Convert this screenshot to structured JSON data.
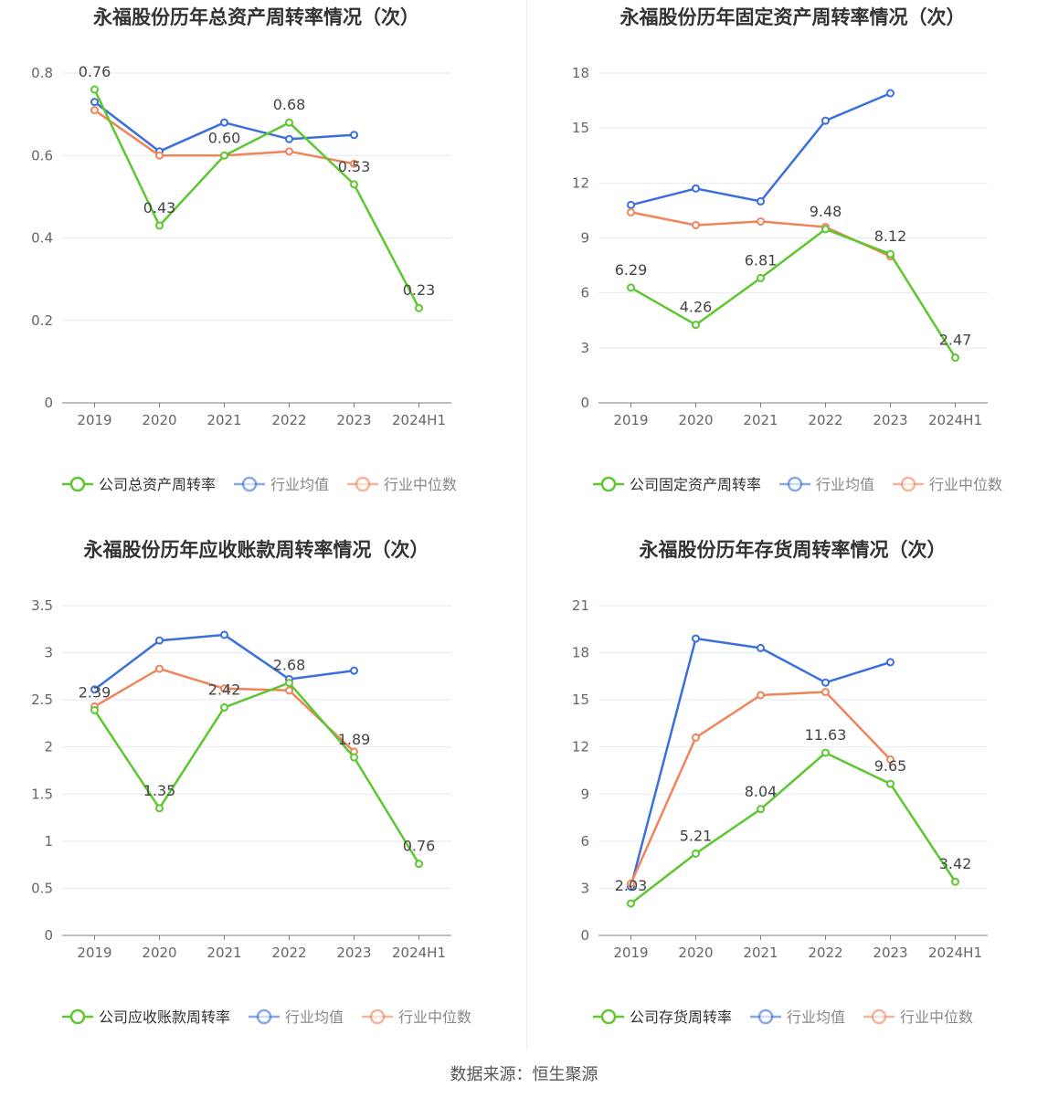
{
  "source_text": "数据来源：恒生聚源",
  "colors": {
    "company": "#5cc72f",
    "avg": "#3b6fdc",
    "median": "#f0845b"
  },
  "chart_data": [
    {
      "type": "line",
      "title": "永福股份历年总资产周转率情况（次）",
      "categories": [
        "2019",
        "2020",
        "2021",
        "2022",
        "2023",
        "2024H1"
      ],
      "ylim": [
        0,
        0.8
      ],
      "yticks": [
        "0",
        "0.2",
        "0.4",
        "0.6",
        "0.8"
      ],
      "ytick_values": [
        0,
        0.2,
        0.4,
        0.6,
        0.8
      ],
      "grid": true,
      "legend_position": "bottom",
      "series": [
        {
          "name": "公司总资产周转率",
          "values": [
            0.76,
            0.43,
            0.6,
            0.68,
            0.53,
            0.23
          ],
          "labels": [
            "0.76",
            "0.43",
            "0.60",
            "0.68",
            "0.53",
            "0.23"
          ]
        },
        {
          "name": "行业均值",
          "values": [
            0.73,
            0.61,
            0.68,
            0.64,
            0.65,
            null
          ]
        },
        {
          "name": "行业中位数",
          "values": [
            0.71,
            0.6,
            0.6,
            0.61,
            0.58,
            null
          ]
        }
      ]
    },
    {
      "type": "line",
      "title": "永福股份历年固定资产周转率情况（次）",
      "categories": [
        "2019",
        "2020",
        "2021",
        "2022",
        "2023",
        "2024H1"
      ],
      "ylim": [
        0,
        18
      ],
      "yticks": [
        "0",
        "3",
        "6",
        "9",
        "12",
        "15",
        "18"
      ],
      "ytick_values": [
        0,
        3,
        6,
        9,
        12,
        15,
        18
      ],
      "grid": true,
      "legend_position": "bottom",
      "series": [
        {
          "name": "公司固定资产周转率",
          "values": [
            6.29,
            4.26,
            6.81,
            9.48,
            8.12,
            2.47
          ],
          "labels": [
            "6.29",
            "4.26",
            "6.81",
            "9.48",
            "8.12",
            "2.47"
          ]
        },
        {
          "name": "行业均值",
          "values": [
            10.8,
            11.7,
            11.0,
            15.4,
            16.9,
            null
          ]
        },
        {
          "name": "行业中位数",
          "values": [
            10.4,
            9.7,
            9.9,
            9.6,
            8.0,
            null
          ]
        }
      ]
    },
    {
      "type": "line",
      "title": "永福股份历年应收账款周转率情况（次）",
      "categories": [
        "2019",
        "2020",
        "2021",
        "2022",
        "2023",
        "2024H1"
      ],
      "ylim": [
        0,
        3.5
      ],
      "yticks": [
        "0",
        "0.5",
        "1",
        "1.5",
        "2",
        "2.5",
        "3",
        "3.5"
      ],
      "ytick_values": [
        0,
        0.5,
        1,
        1.5,
        2,
        2.5,
        3,
        3.5
      ],
      "grid": true,
      "legend_position": "bottom",
      "series": [
        {
          "name": "公司应收账款周转率",
          "values": [
            2.39,
            1.35,
            2.42,
            2.68,
            1.89,
            0.76
          ],
          "labels": [
            "2.39",
            "1.35",
            "2.42",
            "2.68",
            "1.89",
            "0.76"
          ]
        },
        {
          "name": "行业均值",
          "values": [
            2.61,
            3.13,
            3.19,
            2.72,
            2.81,
            null
          ]
        },
        {
          "name": "行业中位数",
          "values": [
            2.43,
            2.83,
            2.62,
            2.6,
            1.95,
            null
          ]
        }
      ]
    },
    {
      "type": "line",
      "title": "永福股份历年存货周转率情况（次）",
      "categories": [
        "2019",
        "2020",
        "2021",
        "2022",
        "2023",
        "2024H1"
      ],
      "ylim": [
        0,
        21
      ],
      "yticks": [
        "0",
        "3",
        "6",
        "9",
        "12",
        "15",
        "18",
        "21"
      ],
      "ytick_values": [
        0,
        3,
        6,
        9,
        12,
        15,
        18,
        21
      ],
      "grid": true,
      "legend_position": "bottom",
      "series": [
        {
          "name": "公司存货周转率",
          "values": [
            2.03,
            5.21,
            8.04,
            11.63,
            9.65,
            3.42
          ],
          "labels": [
            "2.03",
            "5.21",
            "8.04",
            "11.63",
            "9.65",
            "3.42"
          ]
        },
        {
          "name": "行业均值",
          "values": [
            3.1,
            18.9,
            18.3,
            16.1,
            17.4,
            null
          ]
        },
        {
          "name": "行业中位数",
          "values": [
            3.3,
            12.6,
            15.3,
            15.5,
            11.2,
            null
          ]
        }
      ]
    }
  ]
}
